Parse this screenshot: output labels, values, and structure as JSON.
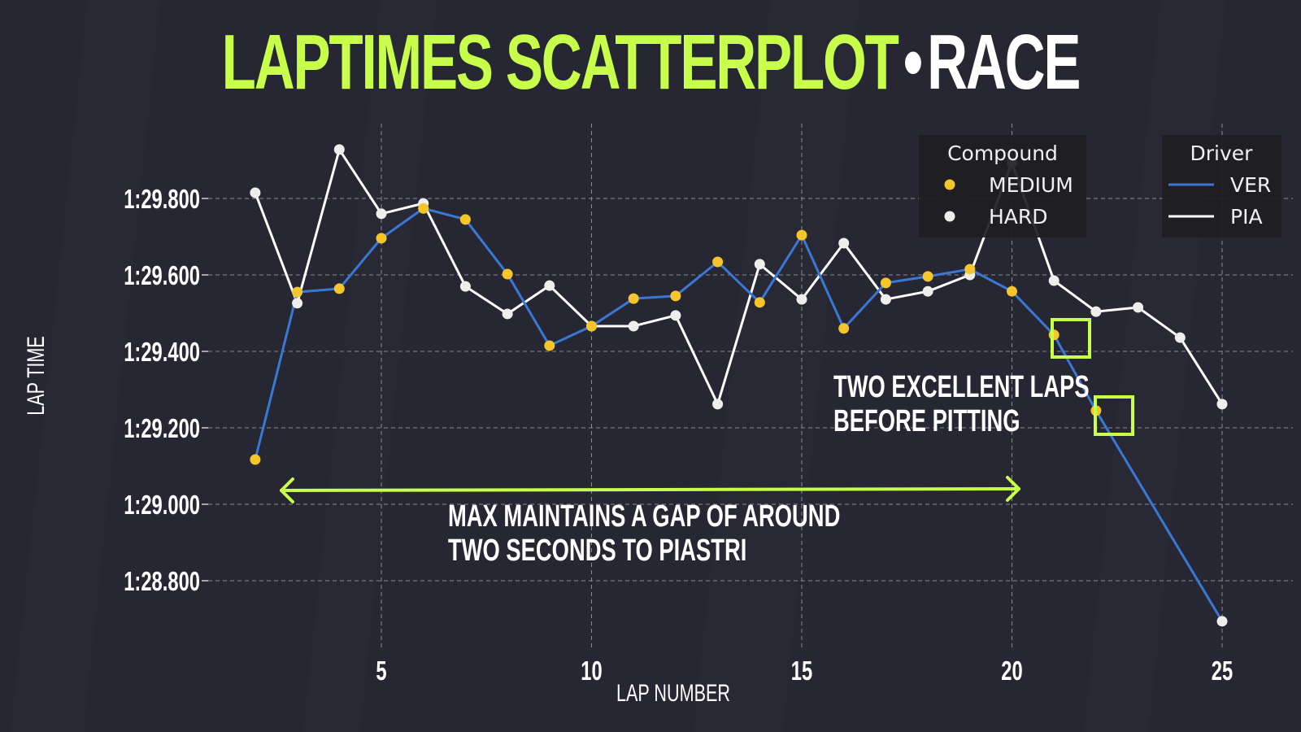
{
  "title": {
    "main": "LAPTIMES SCATTERPLOT",
    "separator": "•",
    "session": "RACE"
  },
  "colors": {
    "background": "#262733",
    "accent": "#c8ff4a",
    "ver_line": "#3a78d4",
    "pia_line": "#ffffff",
    "medium": "#f5c52a",
    "hard": "#eeeeea",
    "legend_bg": "#1e1e22"
  },
  "legend": {
    "compound": {
      "title": "Compound",
      "items": [
        {
          "label": "MEDIUM",
          "color": "#f5c52a"
        },
        {
          "label": "HARD",
          "color": "#eeeeea"
        }
      ]
    },
    "driver": {
      "title": "Driver",
      "items": [
        {
          "label": "VER",
          "color": "#3a78d4"
        },
        {
          "label": "PIA",
          "color": "#ffffff"
        }
      ]
    }
  },
  "annotations": {
    "gap_line1": "MAX MAINTAINS A GAP OF AROUND",
    "gap_line2": "TWO SECONDS TO PIASTRI",
    "pit_line1": "TWO EXCELLENT LAPS",
    "pit_line2": "BEFORE PITTING"
  },
  "chart_data": {
    "type": "scatter",
    "title": "LAPTIMES SCATTERPLOT • RACE",
    "xlabel": "LAP NUMBER",
    "ylabel": "LAP TIME",
    "xlim": [
      1.5,
      25.8
    ],
    "ylim": [
      88.62,
      89.98
    ],
    "x_ticks": [
      5,
      10,
      15,
      20,
      25
    ],
    "y_ticks": [
      {
        "value": 89.8,
        "label": "1:29.800"
      },
      {
        "value": 89.6,
        "label": "1:29.600"
      },
      {
        "value": 89.4,
        "label": "1:29.400"
      },
      {
        "value": 89.2,
        "label": "1:29.200"
      },
      {
        "value": 89.0,
        "label": "1:29.000"
      },
      {
        "value": 88.8,
        "label": "1:28.800"
      }
    ],
    "grid": true,
    "legend_position": "upper right",
    "series": [
      {
        "name": "VER",
        "color": "#3a78d4",
        "points": [
          {
            "lap": 2,
            "time": 89.117,
            "compound": "MEDIUM"
          },
          {
            "lap": 3,
            "time": 89.555,
            "compound": "MEDIUM"
          },
          {
            "lap": 4,
            "time": 89.564,
            "compound": "MEDIUM"
          },
          {
            "lap": 5,
            "time": 89.696,
            "compound": "MEDIUM"
          },
          {
            "lap": 6,
            "time": 89.774,
            "compound": "MEDIUM"
          },
          {
            "lap": 7,
            "time": 89.745,
            "compound": "MEDIUM"
          },
          {
            "lap": 8,
            "time": 89.602,
            "compound": "MEDIUM"
          },
          {
            "lap": 9,
            "time": 89.415,
            "compound": "MEDIUM"
          },
          {
            "lap": 10,
            "time": 89.466,
            "compound": "MEDIUM"
          },
          {
            "lap": 11,
            "time": 89.538,
            "compound": "MEDIUM"
          },
          {
            "lap": 12,
            "time": 89.545,
            "compound": "MEDIUM"
          },
          {
            "lap": 13,
            "time": 89.634,
            "compound": "MEDIUM"
          },
          {
            "lap": 14,
            "time": 89.528,
            "compound": "MEDIUM"
          },
          {
            "lap": 15,
            "time": 89.704,
            "compound": "MEDIUM"
          },
          {
            "lap": 16,
            "time": 89.46,
            "compound": "MEDIUM"
          },
          {
            "lap": 17,
            "time": 89.579,
            "compound": "MEDIUM"
          },
          {
            "lap": 18,
            "time": 89.596,
            "compound": "MEDIUM"
          },
          {
            "lap": 19,
            "time": 89.615,
            "compound": "MEDIUM"
          },
          {
            "lap": 20,
            "time": 89.557,
            "compound": "MEDIUM"
          },
          {
            "lap": 21,
            "time": 89.443,
            "compound": "MEDIUM",
            "highlighted": true
          },
          {
            "lap": 22,
            "time": 89.245,
            "compound": "MEDIUM",
            "highlighted": true
          },
          {
            "lap": 25,
            "time": 88.694,
            "compound": "HARD"
          }
        ]
      },
      {
        "name": "PIA",
        "color": "#ffffff",
        "points": [
          {
            "lap": 2,
            "time": 89.815,
            "compound": "HARD"
          },
          {
            "lap": 3,
            "time": 89.526,
            "compound": "HARD"
          },
          {
            "lap": 4,
            "time": 89.928,
            "compound": "HARD"
          },
          {
            "lap": 5,
            "time": 89.76,
            "compound": "HARD"
          },
          {
            "lap": 6,
            "time": 89.787,
            "compound": "HARD"
          },
          {
            "lap": 7,
            "time": 89.57,
            "compound": "HARD"
          },
          {
            "lap": 8,
            "time": 89.498,
            "compound": "HARD"
          },
          {
            "lap": 9,
            "time": 89.572,
            "compound": "HARD"
          },
          {
            "lap": 10,
            "time": 89.466,
            "compound": "HARD"
          },
          {
            "lap": 11,
            "time": 89.466,
            "compound": "HARD"
          },
          {
            "lap": 12,
            "time": 89.494,
            "compound": "HARD"
          },
          {
            "lap": 13,
            "time": 89.262,
            "compound": "HARD"
          },
          {
            "lap": 14,
            "time": 89.628,
            "compound": "HARD"
          },
          {
            "lap": 15,
            "time": 89.536,
            "compound": "HARD"
          },
          {
            "lap": 16,
            "time": 89.683,
            "compound": "HARD"
          },
          {
            "lap": 17,
            "time": 89.536,
            "compound": "HARD"
          },
          {
            "lap": 18,
            "time": 89.557,
            "compound": "HARD"
          },
          {
            "lap": 19,
            "time": 89.6,
            "compound": "HARD"
          },
          {
            "lap": 20,
            "time": 89.894,
            "compound": "HARD"
          },
          {
            "lap": 21,
            "time": 89.585,
            "compound": "HARD"
          },
          {
            "lap": 22,
            "time": 89.504,
            "compound": "HARD"
          },
          {
            "lap": 23,
            "time": 89.515,
            "compound": "HARD"
          },
          {
            "lap": 24,
            "time": 89.436,
            "compound": "HARD"
          },
          {
            "lap": 25,
            "time": 89.262,
            "compound": "HARD"
          }
        ]
      }
    ],
    "annotations": [
      {
        "type": "double-arrow",
        "from_lap": 2.6,
        "to_lap": 19.8,
        "time": 89.05
      },
      {
        "type": "text",
        "text": "MAX MAINTAINS A GAP OF AROUND TWO SECONDS TO PIASTRI"
      },
      {
        "type": "text",
        "text": "TWO EXCELLENT LAPS BEFORE PITTING"
      },
      {
        "type": "highlight-box",
        "lap": 21
      },
      {
        "type": "highlight-box",
        "lap": 22
      }
    ]
  }
}
